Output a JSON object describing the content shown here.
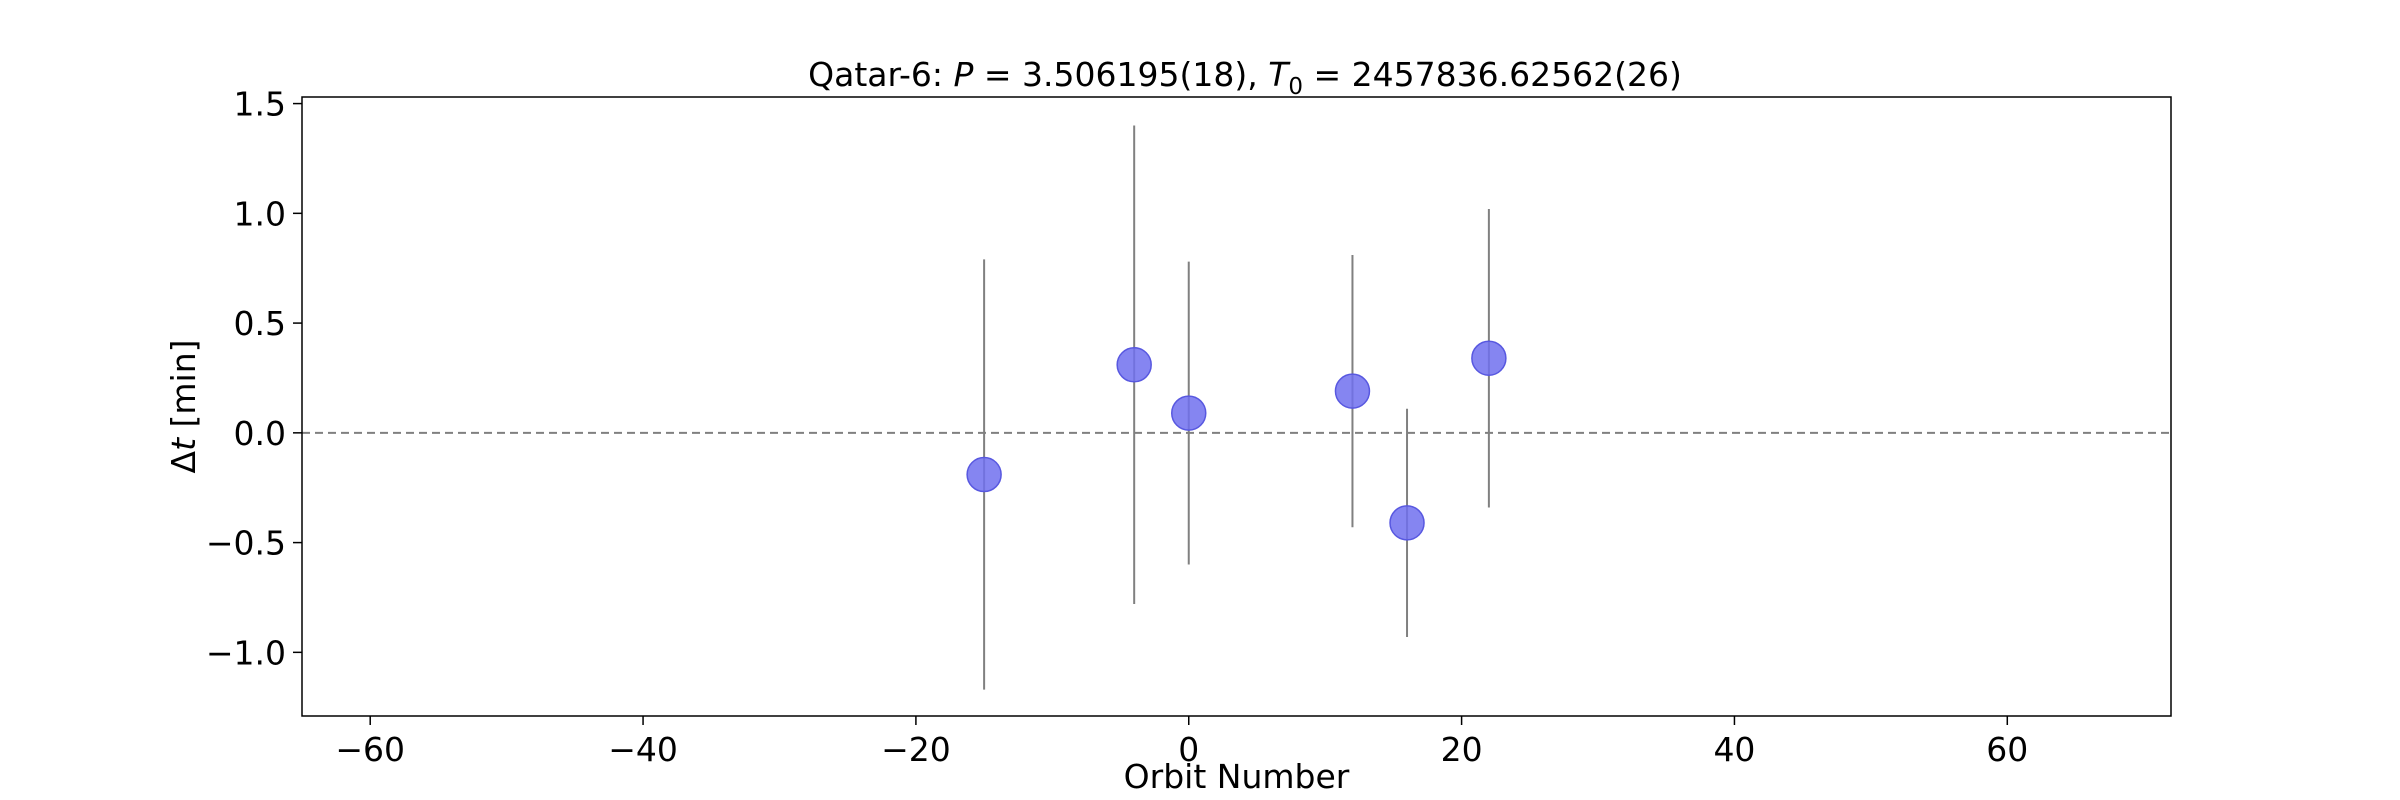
{
  "chart_data": {
    "type": "scatter",
    "title": {
      "prefix": "Qatar-6: ",
      "p_symbol": "P",
      "p_value": " = 3.506195(18), ",
      "t_symbol": "T",
      "t_subscript": "0",
      "t_value": " = 2457836.62562(26)"
    },
    "xlabel": "Orbit Number",
    "ylabel": {
      "delta": "Δ",
      "var": "t",
      "unit": " [min]"
    },
    "xlim": [
      -65,
      72
    ],
    "ylim": [
      -1.29,
      1.53
    ],
    "xticks": [
      -60,
      -40,
      -20,
      0,
      20,
      40,
      60
    ],
    "xtick_labels": [
      "−60",
      "−40",
      "−20",
      "0",
      "20",
      "40",
      "60"
    ],
    "yticks": [
      -1.0,
      -0.5,
      0.0,
      0.5,
      1.0,
      1.5
    ],
    "ytick_labels": [
      "−1.0",
      "−0.5",
      "0.0",
      "0.5",
      "1.0",
      "1.5"
    ],
    "reference_line": {
      "y": 0.0,
      "style": "dashed",
      "color": "#808080"
    },
    "marker_color": "#7070ee",
    "errorbar_color": "#808080",
    "grid": false,
    "points": [
      {
        "x": -15,
        "y": -0.19,
        "yerr": 0.98
      },
      {
        "x": -4,
        "y": 0.31,
        "yerr": 1.09
      },
      {
        "x": 0,
        "y": 0.09,
        "yerr": 0.69
      },
      {
        "x": 12,
        "y": 0.19,
        "yerr": 0.62
      },
      {
        "x": 16,
        "y": -0.41,
        "yerr": 0.52
      },
      {
        "x": 22,
        "y": 0.34,
        "yerr": 0.68
      }
    ]
  }
}
